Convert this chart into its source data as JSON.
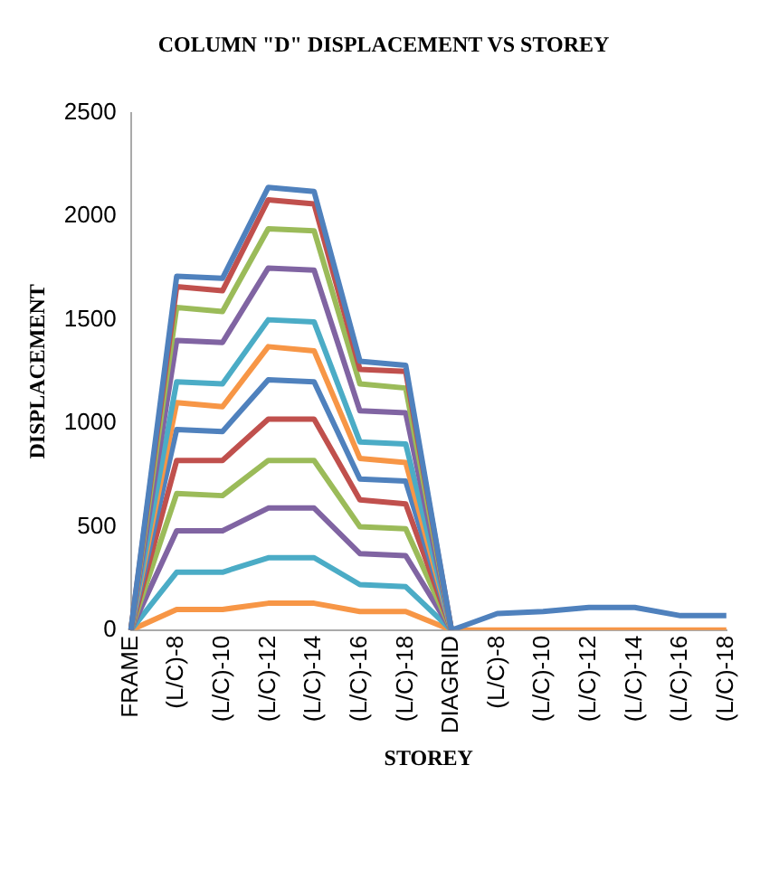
{
  "chart_data": {
    "type": "line",
    "title": "COLUMN \"D\" DISPLACEMENT VS STOREY",
    "xlabel": "STOREY",
    "ylabel": "DISPLACEMENT",
    "categories": [
      "FRAME",
      "(L/C)-8",
      "(L/C)-10",
      "(L/C)-12",
      "(L/C)-14",
      "(L/C)-16",
      "(L/C)-18",
      "DIAGRID",
      "(L/C)-8",
      "(L/C)-10",
      "(L/C)-12",
      "(L/C)-14",
      "(L/C)-16",
      "(L/C)-18"
    ],
    "ylim": [
      0,
      2500
    ],
    "yticks": [
      0,
      500,
      1000,
      1500,
      2000,
      2500
    ],
    "grid": false,
    "legend": false,
    "marker": "none",
    "line_style": "solid",
    "series": [
      {
        "color": "#4f81bd",
        "values": [
          0,
          1710,
          1700,
          2140,
          2120,
          1300,
          1280,
          0,
          80,
          90,
          110,
          110,
          70,
          70
        ]
      },
      {
        "color": "#c0504d",
        "values": [
          0,
          1660,
          1640,
          2080,
          2060,
          1260,
          1250,
          0,
          null,
          null,
          null,
          null,
          null,
          null
        ]
      },
      {
        "color": "#9bbb59",
        "values": [
          0,
          1560,
          1540,
          1940,
          1930,
          1190,
          1170,
          0,
          null,
          null,
          null,
          null,
          null,
          null
        ]
      },
      {
        "color": "#8064a2",
        "values": [
          0,
          1400,
          1390,
          1750,
          1740,
          1060,
          1050,
          0,
          null,
          null,
          null,
          null,
          null,
          null
        ]
      },
      {
        "color": "#4bacc6",
        "values": [
          0,
          1200,
          1190,
          1500,
          1490,
          910,
          900,
          0,
          null,
          null,
          null,
          null,
          null,
          null
        ]
      },
      {
        "color": "#f79646",
        "values": [
          0,
          1100,
          1080,
          1370,
          1350,
          830,
          810,
          0,
          null,
          null,
          null,
          null,
          null,
          null
        ]
      },
      {
        "color": "#4f81bd",
        "values": [
          0,
          970,
          960,
          1210,
          1200,
          730,
          720,
          0,
          null,
          null,
          null,
          null,
          null,
          null
        ]
      },
      {
        "color": "#c0504d",
        "values": [
          0,
          820,
          820,
          1020,
          1020,
          630,
          610,
          0,
          null,
          null,
          null,
          null,
          null,
          null
        ]
      },
      {
        "color": "#9bbb59",
        "values": [
          0,
          660,
          650,
          820,
          820,
          500,
          490,
          0,
          null,
          null,
          null,
          null,
          null,
          null
        ]
      },
      {
        "color": "#8064a2",
        "values": [
          0,
          480,
          480,
          590,
          590,
          370,
          360,
          0,
          null,
          null,
          null,
          null,
          null,
          null
        ]
      },
      {
        "color": "#4bacc6",
        "values": [
          0,
          280,
          280,
          350,
          350,
          220,
          210,
          0,
          null,
          null,
          null,
          null,
          null,
          null
        ]
      },
      {
        "color": "#f79646",
        "values": [
          0,
          100,
          100,
          130,
          130,
          90,
          90,
          0,
          0,
          0,
          0,
          0,
          0,
          0
        ]
      }
    ]
  }
}
